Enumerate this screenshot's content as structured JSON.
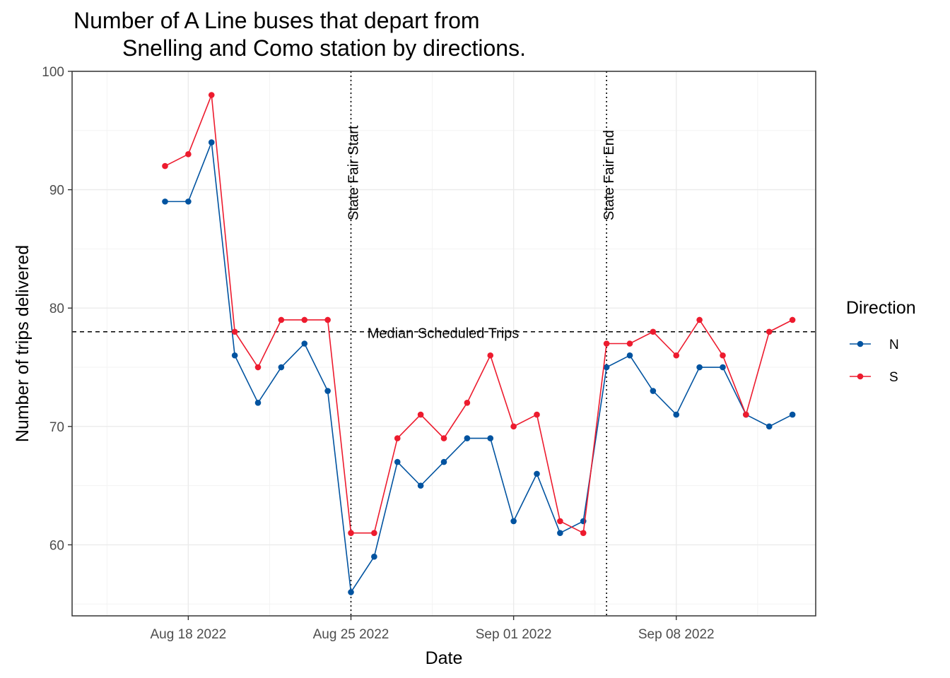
{
  "chart_data": {
    "type": "line",
    "title_line1": "Number of A Line buses that depart from",
    "title_line2": "Snelling and Como station by directions.",
    "xlabel": "Date",
    "ylabel": "Number of trips delivered",
    "x_tick_labels": [
      "Aug 18 2022",
      "Aug 25 2022",
      "Sep 01 2022",
      "Sep 08 2022"
    ],
    "x_tick_dates": [
      "2022-08-18",
      "2022-08-25",
      "2022-09-01",
      "2022-09-08"
    ],
    "x_range": [
      "2022-08-13",
      "2022-09-14"
    ],
    "y_ticks": [
      60,
      70,
      80,
      90,
      100
    ],
    "ylim": [
      54,
      100
    ],
    "grid": true,
    "dates": [
      "2022-08-17",
      "2022-08-18",
      "2022-08-19",
      "2022-08-20",
      "2022-08-21",
      "2022-08-22",
      "2022-08-23",
      "2022-08-24",
      "2022-08-25",
      "2022-08-26",
      "2022-08-27",
      "2022-08-28",
      "2022-08-29",
      "2022-08-30",
      "2022-08-31",
      "2022-09-01",
      "2022-09-02",
      "2022-09-03",
      "2022-09-04",
      "2022-09-05",
      "2022-09-06",
      "2022-09-07",
      "2022-09-08",
      "2022-09-09",
      "2022-09-10",
      "2022-09-11",
      "2022-09-12",
      "2022-09-13"
    ],
    "series": [
      {
        "name": "N",
        "color": "#0053a0",
        "values": [
          89,
          89,
          94,
          76,
          72,
          75,
          77,
          73,
          56,
          59,
          67,
          65,
          67,
          69,
          69,
          62,
          66,
          61,
          62,
          75,
          76,
          73,
          71,
          75,
          75,
          71,
          70,
          71
        ]
      },
      {
        "name": "S",
        "color": "#ed1b2e",
        "values": [
          92,
          93,
          98,
          78,
          75,
          79,
          79,
          79,
          61,
          61,
          69,
          71,
          69,
          72,
          76,
          70,
          71,
          62,
          61,
          77,
          77,
          78,
          76,
          79,
          76,
          71,
          78,
          79
        ]
      }
    ],
    "hline": {
      "y": 78,
      "label": "Median Scheduled Trips"
    },
    "vlines": [
      {
        "date": "2022-08-25",
        "label": "State Fair Start"
      },
      {
        "date": "2022-09-05",
        "label": "State Fair End"
      }
    ],
    "legend": {
      "title": "Direction",
      "position": "right"
    }
  }
}
